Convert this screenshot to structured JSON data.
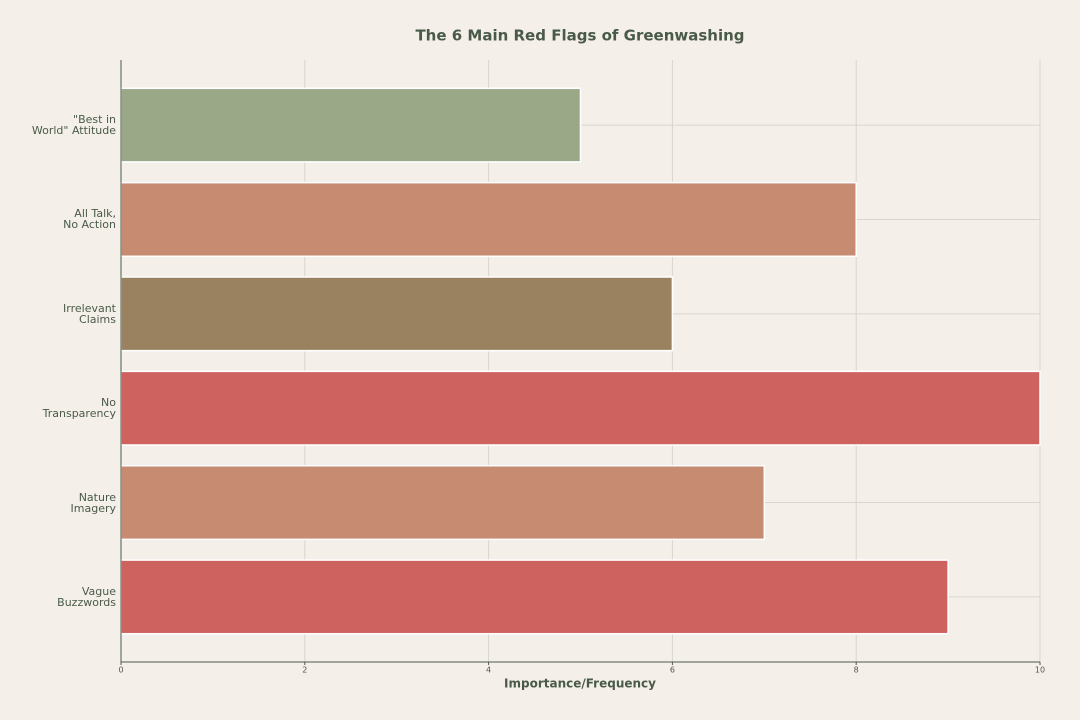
{
  "chart_data": {
    "type": "barh",
    "title": "The 6 Main Red Flags of Greenwashing",
    "x_label": "Importance/Frequency",
    "categories": [
      "\"Best in\nWorld\" Attitude",
      "All Talk,\nNo Action",
      "Irrelevant\nClaims",
      "No\nTransparency",
      "Nature\nImagery",
      "Vague\nBuzzwords"
    ],
    "values": [
      5,
      8,
      6,
      10,
      7,
      9
    ],
    "colors": [
      "#9aa888",
      "#c78b72",
      "#9a815f",
      "#cd625f",
      "#c78b72",
      "#cd625f"
    ],
    "xlim": [
      0,
      10
    ],
    "xticks": [
      0,
      2,
      4,
      6,
      8,
      10
    ],
    "grid": true
  }
}
